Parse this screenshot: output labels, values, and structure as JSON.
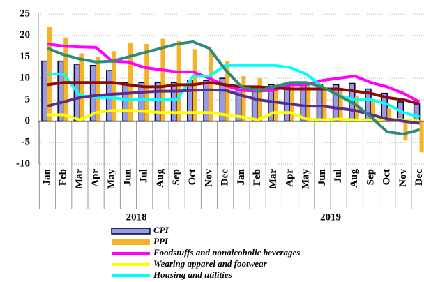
{
  "chart_data": {
    "type": "bar_line",
    "categories": [
      "Jan",
      "Feb",
      "Mar",
      "Apr",
      "May",
      "Jun",
      "Jul",
      "Aug",
      "Sep",
      "Oct",
      "Nov",
      "Dec",
      "Jan",
      "Feb",
      "Mar",
      "Apr",
      "May",
      "Jun",
      "Jul",
      "Aug",
      "Sep",
      "Oct",
      "Nov",
      "Dec"
    ],
    "years": [
      "2018",
      "2019"
    ],
    "series": [
      {
        "name": "CPI",
        "kind": "bar",
        "color": "#9a9ae0",
        "values": [
          14,
          14,
          13.3,
          13,
          11.8,
          9,
          9,
          9,
          9,
          9.5,
          9.5,
          10,
          7.5,
          7.8,
          8.5,
          8.7,
          8.5,
          8.5,
          8.5,
          8.8,
          7.5,
          6.5,
          4.5,
          4
        ]
      },
      {
        "name": "PPI",
        "kind": "bar",
        "color": "#f5b325",
        "values": [
          22,
          19.5,
          15.8,
          15,
          16.3,
          18.3,
          18,
          19.2,
          18.7,
          16.8,
          16.5,
          14,
          10.5,
          10,
          8,
          9,
          9,
          8,
          7,
          6,
          5,
          3,
          -4.5,
          -7.3
        ]
      },
      {
        "name": "Foodstuffs and nonalcoholic beverages",
        "kind": "line",
        "color": "#ff00ff",
        "values": [
          18,
          17.5,
          17.3,
          17.2,
          14,
          13.8,
          12.5,
          12,
          11.5,
          11.5,
          10,
          8.3,
          7.2,
          7,
          7.2,
          8.5,
          8.5,
          9.5,
          10,
          10.5,
          9,
          8,
          6.5,
          4.5
        ]
      },
      {
        "name": "Wearing apparel and footwear",
        "kind": "line",
        "color": "#ffff00",
        "values": [
          1.5,
          1.5,
          0.3,
          2,
          2.5,
          2.5,
          2.3,
          2,
          2,
          2,
          2,
          1.5,
          1,
          0.3,
          2,
          2,
          0.5,
          0.3,
          0.5,
          0.3,
          0.3,
          0.5,
          0.3,
          0
        ]
      },
      {
        "name": "Housing and utilities",
        "kind": "line",
        "color": "#00ffff",
        "values": [
          11,
          11,
          6,
          5.5,
          5.5,
          5,
          5,
          5,
          5,
          10.5,
          10.5,
          13,
          13,
          13,
          13,
          12.5,
          11,
          8,
          6,
          5,
          5,
          4,
          2,
          1
        ]
      },
      {
        "kind": "line",
        "color": "#8b0a0a",
        "values": [
          8.5,
          9,
          9,
          9,
          9,
          8.5,
          8,
          8,
          8.5,
          8.5,
          9,
          8.5,
          8,
          8,
          7.8,
          7.5,
          7.5,
          7.5,
          7.5,
          7,
          6.5,
          5.5,
          5,
          4
        ]
      },
      {
        "kind": "line",
        "color": "#5b2d8e",
        "values": [
          3.5,
          4.5,
          5.5,
          6,
          6.3,
          6.5,
          6.8,
          7,
          7,
          7.2,
          7.3,
          7.2,
          6,
          5,
          4.5,
          4,
          3.5,
          3.5,
          3,
          2.5,
          1.5,
          0.5,
          0,
          -0.5
        ]
      },
      {
        "kind": "line",
        "color": "#2e8b7a",
        "values": [
          17,
          15.5,
          14.5,
          13.8,
          14,
          15,
          16,
          17,
          18,
          18.5,
          17,
          12,
          8,
          7,
          8,
          9,
          9,
          8,
          6,
          4,
          1,
          -2.5,
          -3,
          -2
        ]
      }
    ],
    "ylim": [
      -10,
      25
    ],
    "yticks": [
      -10,
      -5,
      0,
      5,
      10,
      15,
      20,
      25
    ],
    "grid": true
  }
}
